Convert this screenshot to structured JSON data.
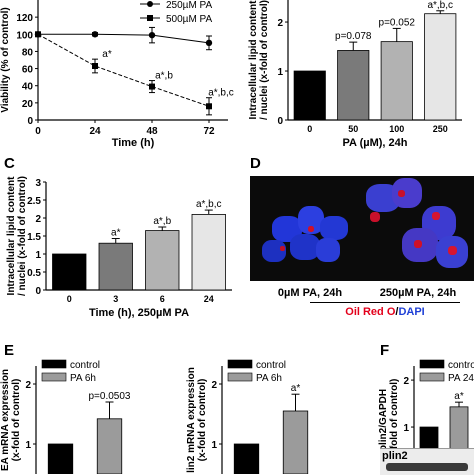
{
  "panels": {
    "C": "C",
    "D": "D",
    "E": "E",
    "F": "F"
  },
  "microscopy": {
    "label_left": "0µM PA, 24h",
    "label_right": "250µM PA, 24h",
    "stain_red": "Oil Red O",
    "stain_sep": "/",
    "stain_blue": "DAPI",
    "colors": {
      "red": "#e3001b",
      "blue": "#1e3fd6"
    }
  },
  "western": {
    "label": "plin2"
  },
  "chart_data": [
    {
      "id": "A",
      "type": "line",
      "title": "",
      "xlabel": "Time (h)",
      "ylabel": "Viability (% of control)",
      "x": [
        0,
        24,
        48,
        72
      ],
      "xticks": [
        "0",
        "24",
        "48",
        "72"
      ],
      "yticks": [
        "0",
        "20",
        "40",
        "60",
        "80",
        "100",
        "120"
      ],
      "ylim": [
        0,
        140
      ],
      "legend_position": "top-right",
      "series": [
        {
          "name": "250µM PA",
          "marker": "circle",
          "values": [
            100,
            100,
            99,
            90
          ],
          "err": [
            0,
            2,
            9,
            8
          ],
          "labels": [
            "",
            "",
            "",
            ""
          ]
        },
        {
          "name": "500µM PA",
          "marker": "square",
          "values": [
            100,
            63,
            39,
            16
          ],
          "err": [
            0,
            8,
            7,
            10
          ],
          "labels": [
            "",
            "a*",
            "a*,b",
            "a*,b,c"
          ]
        }
      ]
    },
    {
      "id": "B",
      "type": "bar",
      "title": "",
      "xlabel": "PA (µM), 24h",
      "ylabel": "Intracellular lipid content / nuclei (x-fold of control)",
      "categories": [
        "0",
        "50",
        "100",
        "250"
      ],
      "values": [
        1.0,
        1.42,
        1.6,
        2.17
      ],
      "err": [
        0,
        0.17,
        0.27,
        0.06
      ],
      "annotations": [
        "",
        "p=0.078",
        "p=0.052",
        "a*,b,c"
      ],
      "colors": [
        "#000000",
        "#7a7a7a",
        "#b2b2b2",
        "#e6e6e6"
      ],
      "yticks": [
        "0",
        "1",
        "2"
      ],
      "ylim": [
        0,
        2.45
      ]
    },
    {
      "id": "C",
      "type": "bar",
      "title": "",
      "xlabel": "Time (h), 250µM PA",
      "ylabel": "Intracellular lipid content / nuclei (x-fold of control)",
      "categories": [
        "0",
        "3",
        "6",
        "24"
      ],
      "values": [
        1.0,
        1.3,
        1.65,
        2.1
      ],
      "err": [
        0,
        0.13,
        0.1,
        0.12
      ],
      "annotations": [
        "",
        "a*",
        "a*,b",
        "a*,b,c"
      ],
      "colors": [
        "#000000",
        "#7a7a7a",
        "#b2b2b2",
        "#e6e6e6"
      ],
      "yticks": [
        "0",
        "0.5",
        "1",
        "1.5",
        "2",
        "2.5",
        "3"
      ],
      "ylim": [
        0,
        3
      ]
    },
    {
      "id": "E1",
      "type": "bar",
      "title": "",
      "xlabel": "",
      "ylabel": "EA mRNA expression (x-fold of control)",
      "categories": [
        "control",
        "PA 6h"
      ],
      "values": [
        1.0,
        1.42
      ],
      "err": [
        0,
        0.28
      ],
      "annotations": [
        "",
        "p=0.0503"
      ],
      "colors": [
        "#000000",
        "#9b9b9b"
      ],
      "yticks": [
        "1",
        "2"
      ],
      "ylim": [
        0.5,
        2.3
      ],
      "legend": [
        "control",
        "PA 6h"
      ],
      "legend_position": "top-left"
    },
    {
      "id": "E2",
      "type": "bar",
      "title": "",
      "xlabel": "",
      "ylabel": "lin2 mRNA expression (x-fold of control)",
      "categories": [
        "control",
        "PA 6h"
      ],
      "values": [
        1.0,
        1.55
      ],
      "err": [
        0,
        0.28
      ],
      "annotations": [
        "",
        "a*"
      ],
      "colors": [
        "#000000",
        "#9b9b9b"
      ],
      "yticks": [
        "1",
        "2"
      ],
      "ylim": [
        0.5,
        2.3
      ],
      "legend": [
        "control",
        "PA 6h"
      ],
      "legend_position": "top-left"
    },
    {
      "id": "F",
      "type": "bar",
      "title": "",
      "xlabel": "",
      "ylabel": "plin2/GAPDH (x-fold of control)",
      "categories": [
        "control",
        "PA 24h"
      ],
      "values": [
        1.0,
        1.43
      ],
      "err": [
        0,
        0.1
      ],
      "annotations": [
        "",
        "a*"
      ],
      "colors": [
        "#000000",
        "#9b9b9b"
      ],
      "yticks": [
        "0",
        "1",
        "2"
      ],
      "ylim": [
        0,
        2.3
      ],
      "legend": [
        "control",
        "PA 24h"
      ],
      "legend_position": "top-left"
    }
  ]
}
